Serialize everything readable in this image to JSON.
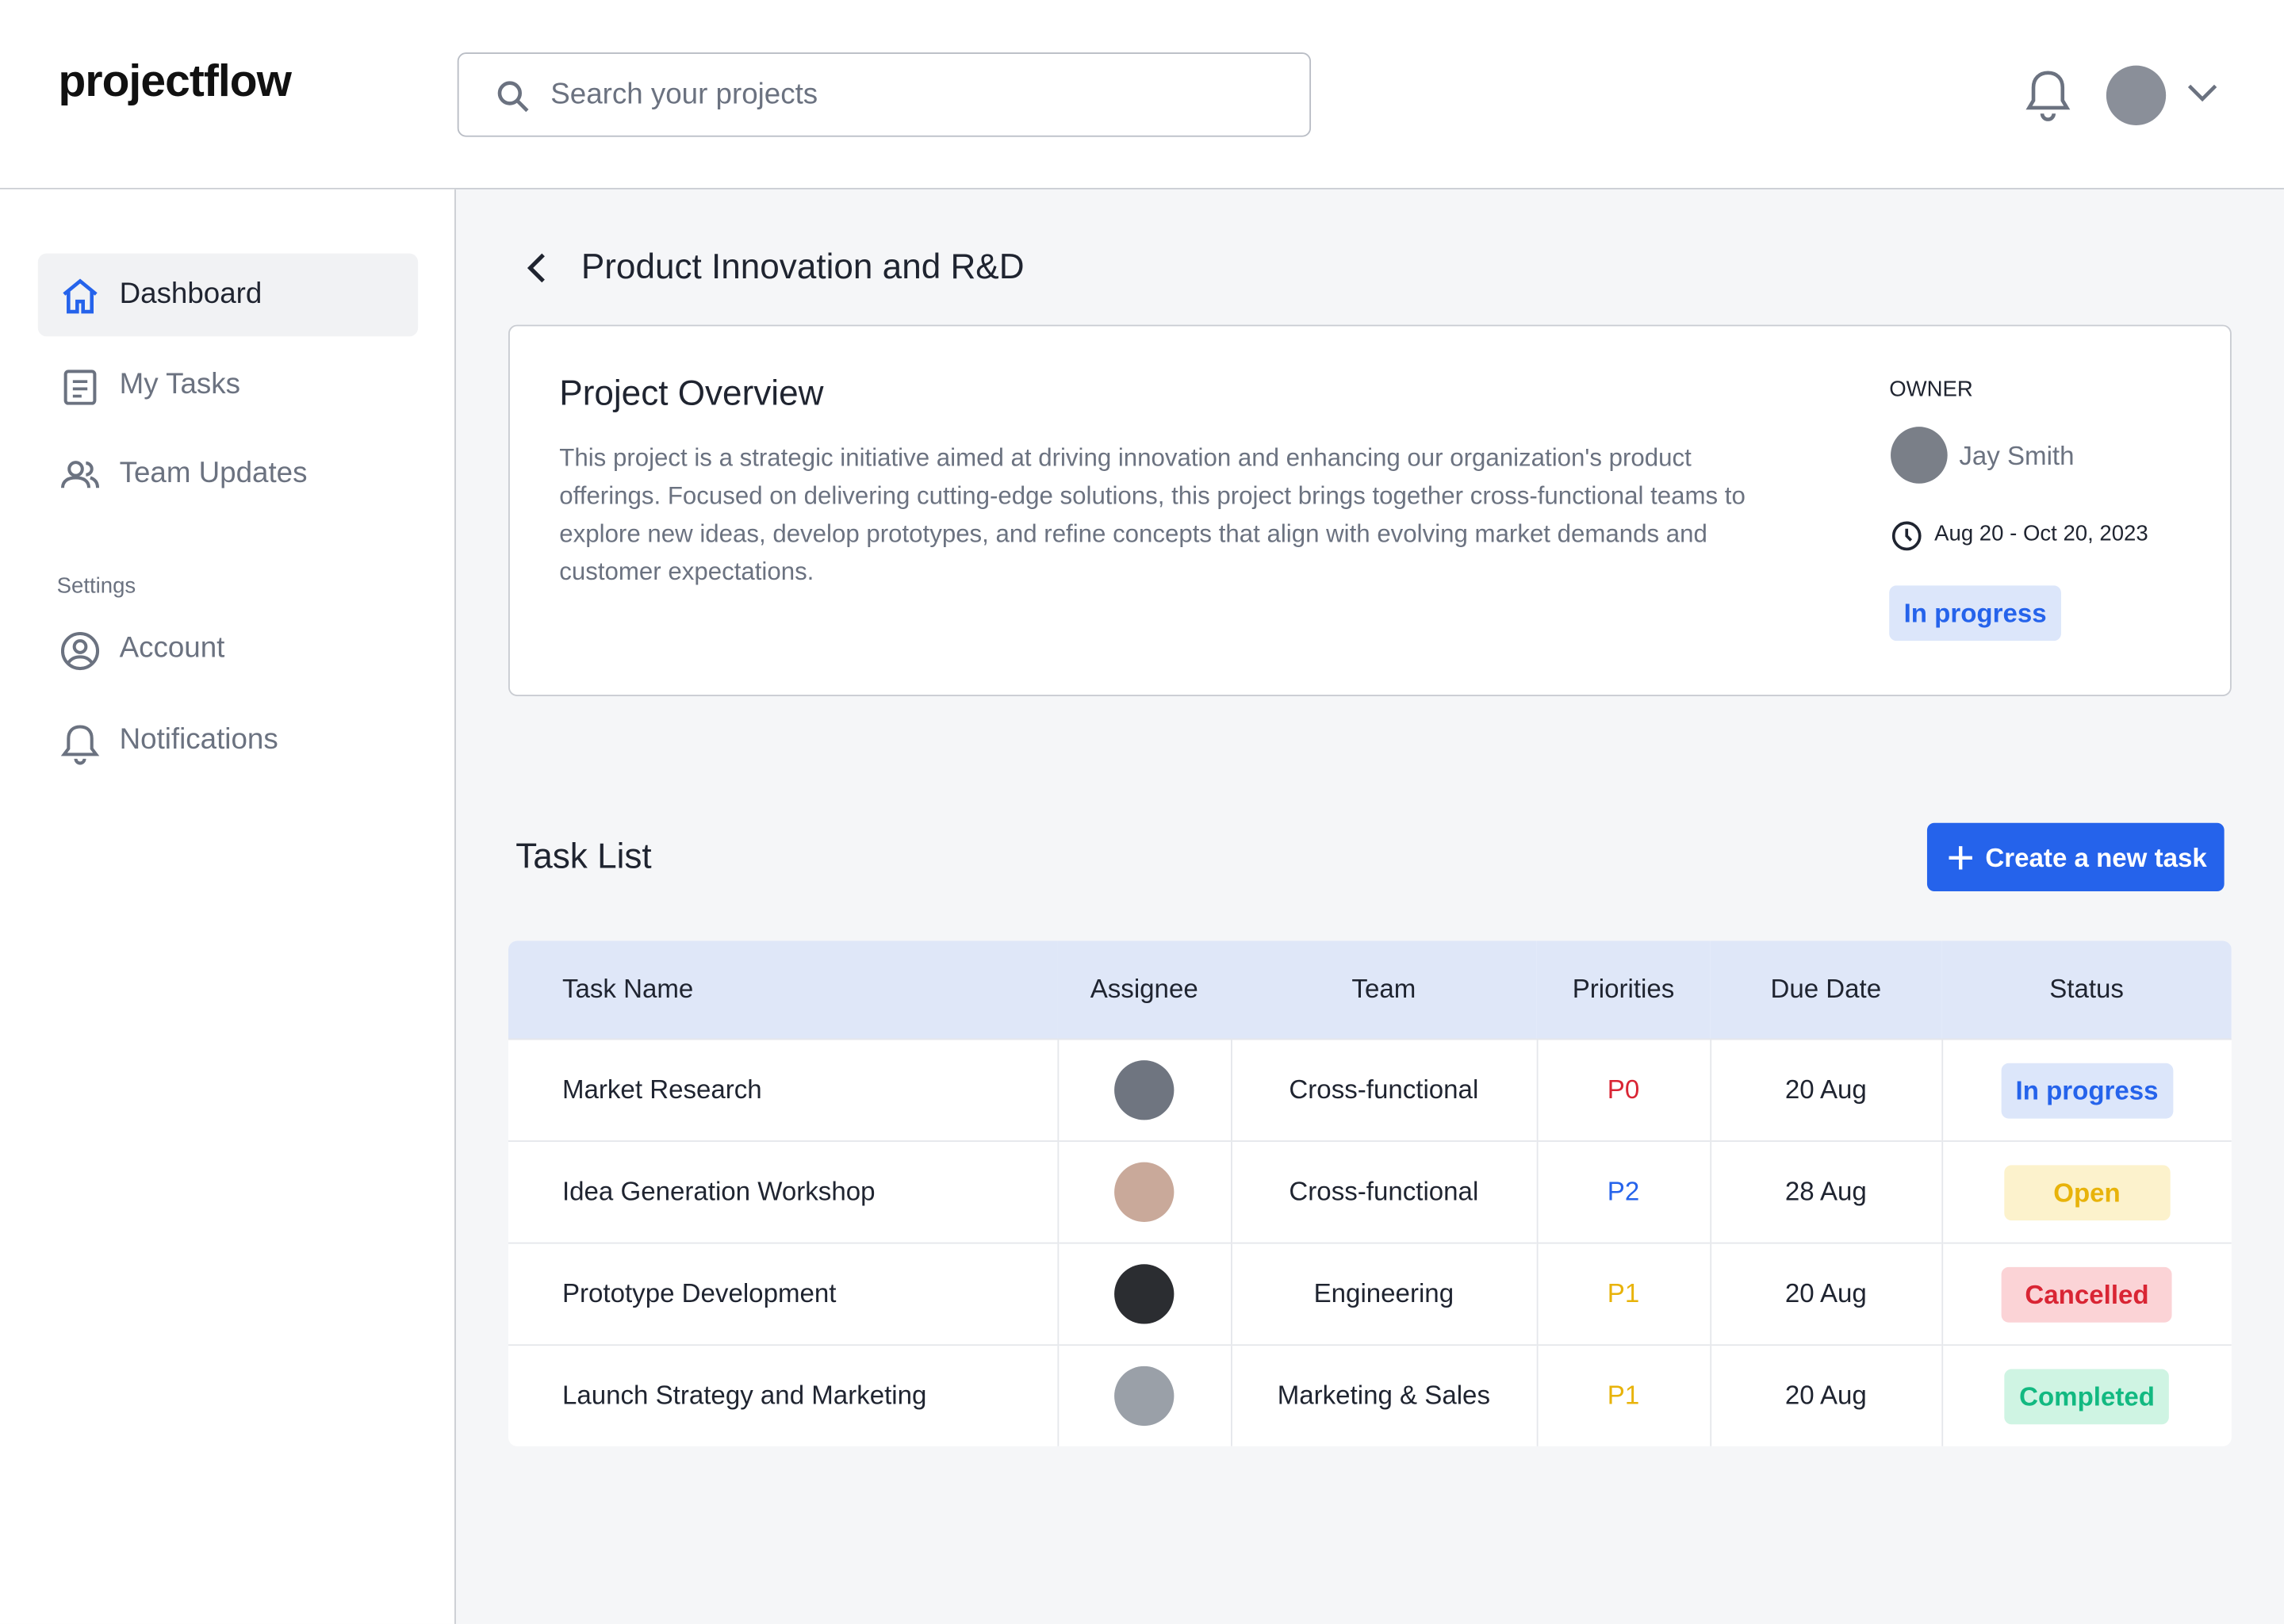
{
  "header": {
    "logo": "projectflow",
    "search_placeholder": "Search your projects"
  },
  "sidebar": {
    "nav": [
      "Dashboard",
      "My Tasks",
      "Team Updates"
    ],
    "settings_heading": "Settings",
    "settings": [
      "Account",
      "Notifications"
    ]
  },
  "page": {
    "title": "Product Innovation and R&D"
  },
  "overview": {
    "title": "Project Overview",
    "description": "This project is a strategic initiative aimed at driving innovation and enhancing our organization's product offerings. Focused on delivering cutting-edge solutions, this project brings together cross-functional teams to explore new ideas, develop prototypes, and refine concepts that align with evolving market demands and customer expectations.",
    "owner_label": "OWNER",
    "owner_name": "Jay Smith",
    "dates": "Aug 20 - Oct 20, 2023",
    "status": "In progress"
  },
  "tasks": {
    "title": "Task List",
    "button": "Create a new task",
    "columns": [
      "Task Name",
      "Assignee",
      "Team",
      "Priorities",
      "Due Date",
      "Status"
    ],
    "rows": [
      [
        "Market Research",
        "Cross-functional",
        "P0",
        "20 Aug",
        "In progress"
      ],
      [
        "Idea Generation Workshop",
        "Cross-functional",
        "P2",
        "28 Aug",
        "Open"
      ],
      [
        "Prototype Development",
        "Engineering",
        "P1",
        "20 Aug",
        "Cancelled"
      ],
      [
        "Launch Strategy and Marketing",
        "Marketing & Sales",
        "P1",
        "20 Aug",
        "Completed"
      ]
    ]
  }
}
